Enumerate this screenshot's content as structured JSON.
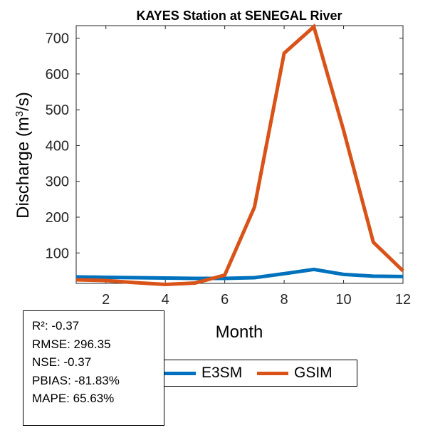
{
  "chart_data": {
    "type": "line",
    "title": "KAYES  Station at  SENEGAL  River",
    "xlabel": "Month",
    "ylabel": "Discharge (m³/s)",
    "ylabel_parts": {
      "main": "Discharge (m",
      "sup": "3",
      "tail": "/s)"
    },
    "xlim": [
      1,
      12
    ],
    "ylim": [
      15,
      735
    ],
    "xticks": [
      2,
      4,
      6,
      8,
      10,
      12
    ],
    "yticks": [
      100,
      200,
      300,
      400,
      500,
      600,
      700
    ],
    "grid": false,
    "x": [
      1,
      2,
      3,
      4,
      5,
      6,
      7,
      8,
      9,
      10,
      11,
      12
    ],
    "series": [
      {
        "name": "E3SM",
        "color": "#0072BD",
        "values": [
          33,
          32,
          31,
          30,
          29,
          29,
          31,
          42,
          54,
          40,
          35,
          34
        ]
      },
      {
        "name": "GSIM",
        "color": "#D95319",
        "values": [
          25,
          23,
          17,
          12,
          16,
          38,
          228,
          658,
          732,
          443,
          130,
          50
        ]
      }
    ],
    "legend_position": "bottom-center"
  },
  "stats": {
    "r2": "R²: -0.37",
    "rmse": "RMSE: 296.35",
    "nse": "NSE: -0.37",
    "pbias": "PBIAS: -81.83%",
    "mape": "MAPE: 65.63%"
  }
}
